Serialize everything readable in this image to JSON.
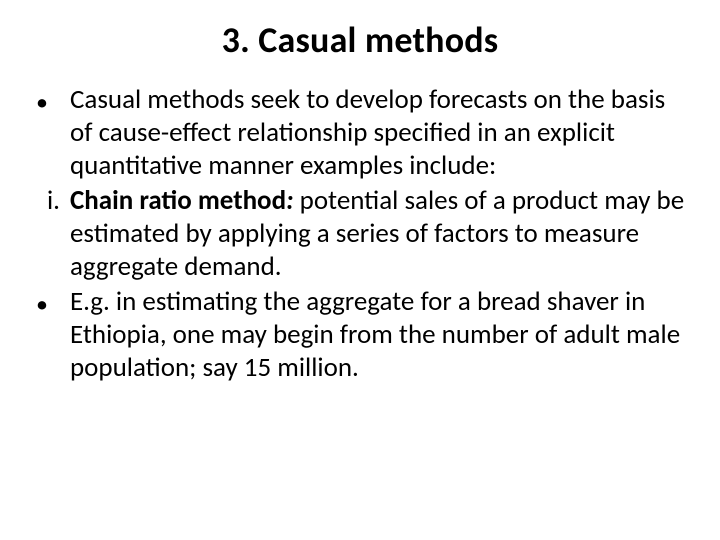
{
  "title": "3. Casual methods",
  "items": [
    {
      "marker": "•",
      "markerClass": "bullet",
      "runs": [
        {
          "text": "Casual methods seek to develop forecasts on the basis of cause-effect relationship specified in an explicit quantitative manner examples include:",
          "cls": ""
        }
      ]
    },
    {
      "marker": "i.",
      "markerClass": "roman",
      "runs": [
        {
          "text": "Chain ratio method",
          "cls": "bold"
        },
        {
          "text": ":",
          "cls": "bi"
        },
        {
          "text": " potential sales of a product may be estimated by applying a series of factors to measure aggregate demand.",
          "cls": ""
        }
      ]
    },
    {
      "marker": "•",
      "markerClass": "bullet",
      "runs": [
        {
          "text": "E.g. in estimating the aggregate for a bread shaver in Ethiopia, one may begin from the number of adult male population; say 15 million.",
          "cls": ""
        }
      ]
    }
  ],
  "colors": {
    "background": "#ffffff",
    "text": "#000000"
  },
  "typography": {
    "title_fontsize": 36,
    "body_fontsize": 27,
    "font_family": "Calibri"
  }
}
